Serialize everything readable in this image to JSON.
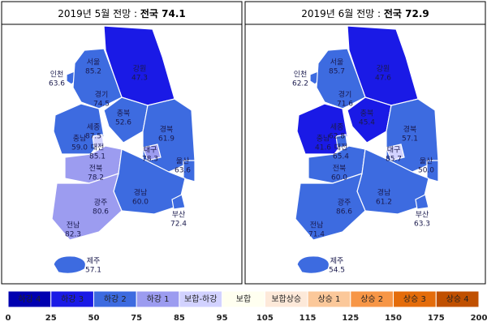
{
  "panels": [
    {
      "title": "2019년 5월 전망 : ",
      "headline": "전국 74.1",
      "regions": [
        {
          "name": "인천",
          "value": "63.6"
        },
        {
          "name": "서울",
          "value": "85.2"
        },
        {
          "name": "강원",
          "value": "47.3"
        },
        {
          "name": "경기",
          "value": "74.5"
        },
        {
          "name": "충북",
          "value": "52.6"
        },
        {
          "name": "세종",
          "value": "87.5"
        },
        {
          "name": "충남",
          "value": "59.0"
        },
        {
          "name": "대전",
          "value": "85.1"
        },
        {
          "name": "경북",
          "value": "61.9"
        },
        {
          "name": "대구",
          "value": "78.3"
        },
        {
          "name": "울산",
          "value": "63.6"
        },
        {
          "name": "전북",
          "value": "78.2"
        },
        {
          "name": "광주",
          "value": "80.6"
        },
        {
          "name": "경남",
          "value": "60.0"
        },
        {
          "name": "부산",
          "value": "72.4"
        },
        {
          "name": "전남",
          "value": "82.3"
        },
        {
          "name": "제주",
          "value": "57.1"
        }
      ]
    },
    {
      "title": "2019년 6월 전망 : ",
      "headline": "전국 72.9",
      "regions": [
        {
          "name": "인천",
          "value": "62.2"
        },
        {
          "name": "서울",
          "value": "85.7"
        },
        {
          "name": "강원",
          "value": "47.6"
        },
        {
          "name": "경기",
          "value": "71.6"
        },
        {
          "name": "충북",
          "value": "45.4"
        },
        {
          "name": "세종",
          "value": "62.8"
        },
        {
          "name": "충남",
          "value": "41.6"
        },
        {
          "name": "대전",
          "value": "65.4"
        },
        {
          "name": "경북",
          "value": "57.1"
        },
        {
          "name": "대구",
          "value": "85.7"
        },
        {
          "name": "울산",
          "value": "50.0"
        },
        {
          "name": "전북",
          "value": "60.0"
        },
        {
          "name": "광주",
          "value": "86.6"
        },
        {
          "name": "경남",
          "value": "61.2"
        },
        {
          "name": "부산",
          "value": "63.3"
        },
        {
          "name": "전남",
          "value": "71.4"
        },
        {
          "name": "제주",
          "value": "54.5"
        }
      ]
    }
  ],
  "legend": {
    "labels": [
      "하강 4",
      "하강 3",
      "하강 2",
      "하강 1",
      "보합-하강",
      "보합",
      "보합상승",
      "상승 1",
      "상승 2",
      "상승 3",
      "상승 4"
    ],
    "colors": [
      "#0000b0",
      "#1a1ae6",
      "#3d6be0",
      "#9c9cf0",
      "#d2d2ff",
      "#fffff0",
      "#fde9d9",
      "#fbc89a",
      "#f79646",
      "#e46c0a",
      "#c05000"
    ],
    "ticks": [
      0,
      25,
      50,
      75,
      85,
      95,
      105,
      115,
      125,
      150,
      175,
      200
    ]
  }
}
